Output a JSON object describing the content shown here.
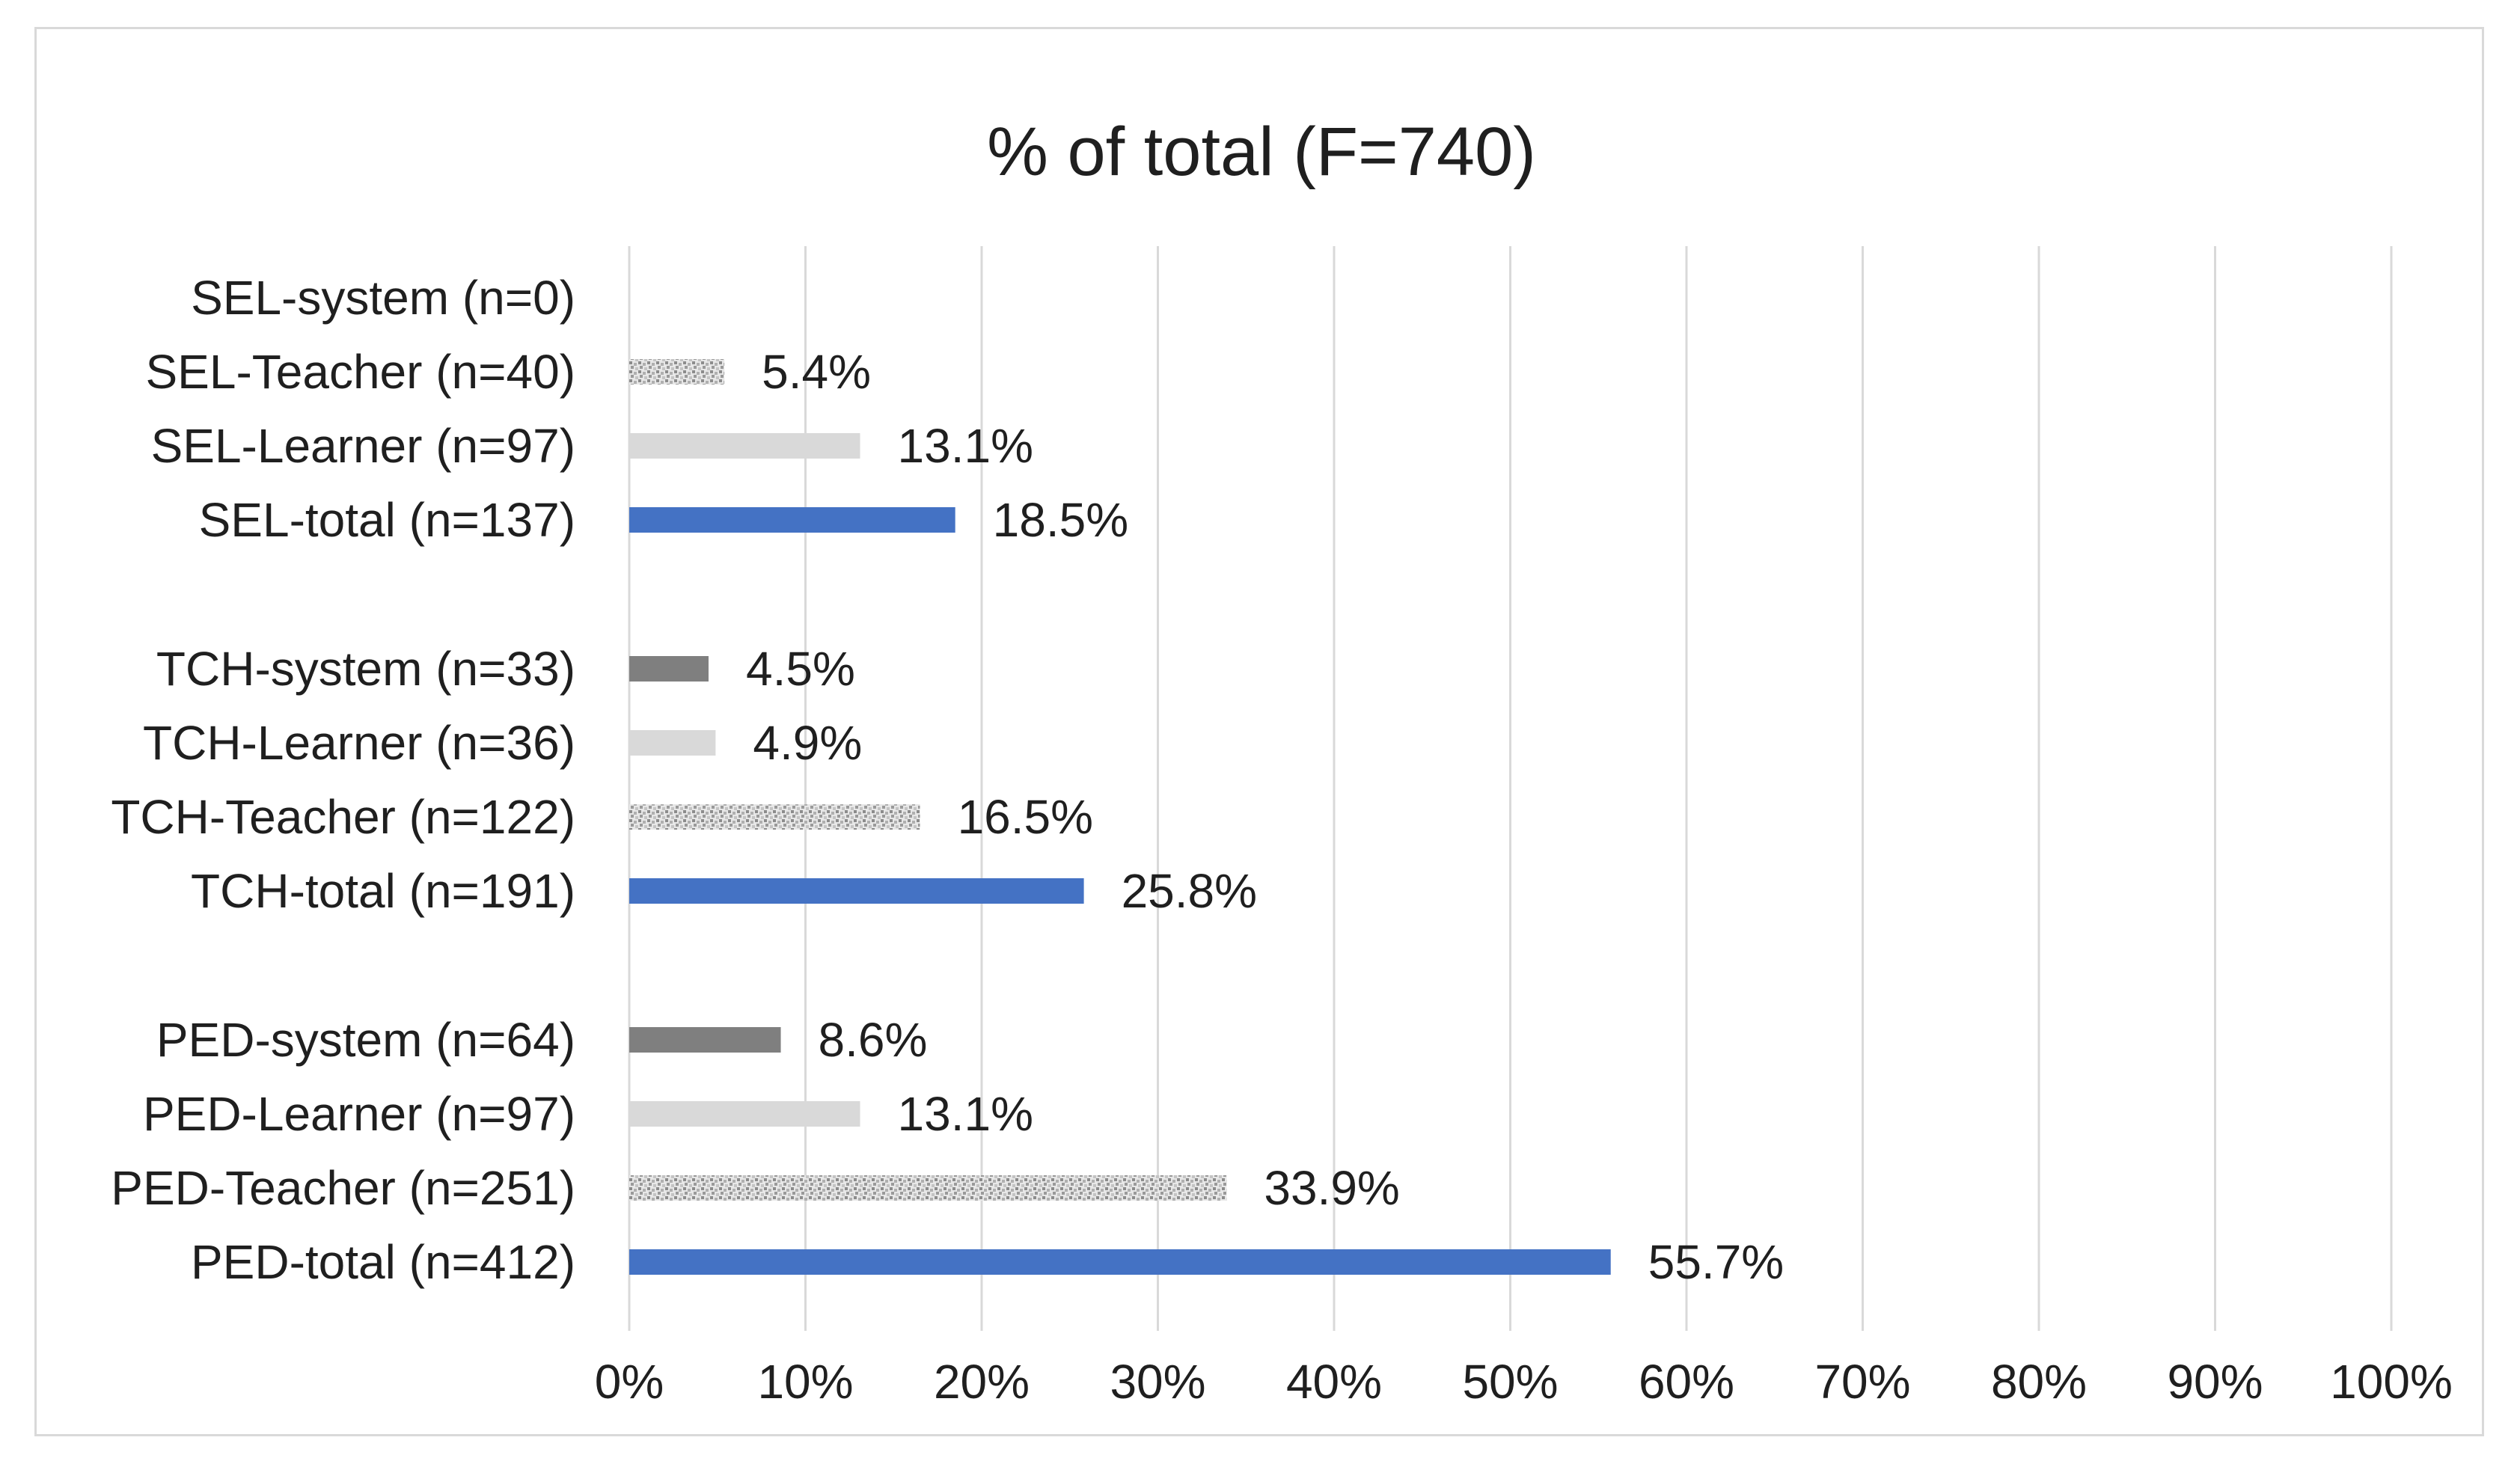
{
  "chart_data": {
    "type": "bar",
    "orientation": "horizontal",
    "title": "% of total (F=740)",
    "xlabel": "",
    "ylabel": "",
    "xlim": [
      0,
      100
    ],
    "x_ticks": [
      "0%",
      "10%",
      "20%",
      "30%",
      "40%",
      "50%",
      "60%",
      "70%",
      "80%",
      "90%",
      "100%"
    ],
    "grid": "vertical",
    "legend": "none",
    "categories": [
      {
        "label": "SEL-system (n=0)",
        "value": 0,
        "value_label": "",
        "style": "dark"
      },
      {
        "label": "SEL-Teacher (n=40)",
        "value": 5.4,
        "value_label": "5.4%",
        "style": "pattern"
      },
      {
        "label": "SEL-Learner (n=97)",
        "value": 13.1,
        "value_label": "13.1%",
        "style": "light"
      },
      {
        "label": "SEL-total (n=137)",
        "value": 18.5,
        "value_label": "18.5%",
        "style": "total"
      },
      {
        "label": "TCH-system (n=33)",
        "value": 4.5,
        "value_label": "4.5%",
        "style": "dark"
      },
      {
        "label": "TCH-Learner (n=36)",
        "value": 4.9,
        "value_label": "4.9%",
        "style": "light"
      },
      {
        "label": "TCH-Teacher (n=122)",
        "value": 16.5,
        "value_label": "16.5%",
        "style": "pattern"
      },
      {
        "label": "TCH-total (n=191)",
        "value": 25.8,
        "value_label": "25.8%",
        "style": "total"
      },
      {
        "label": "PED-system (n=64)",
        "value": 8.6,
        "value_label": "8.6%",
        "style": "dark"
      },
      {
        "label": "PED-Learner (n=97)",
        "value": 13.1,
        "value_label": "13.1%",
        "style": "light"
      },
      {
        "label": "PED-Teacher (n=251)",
        "value": 33.9,
        "value_label": "33.9%",
        "style": "pattern"
      },
      {
        "label": "PED-total (n=412)",
        "value": 55.7,
        "value_label": "55.7%",
        "style": "total"
      }
    ],
    "colors": {
      "total": "#4472c4",
      "dark": "#7f7f7f",
      "light": "#d9d9d9",
      "pattern_fg": "#a6a6a6",
      "pattern_bg": "#e7e7e7",
      "grid": "#d9d9d9",
      "text": "#1f1f1f"
    }
  }
}
